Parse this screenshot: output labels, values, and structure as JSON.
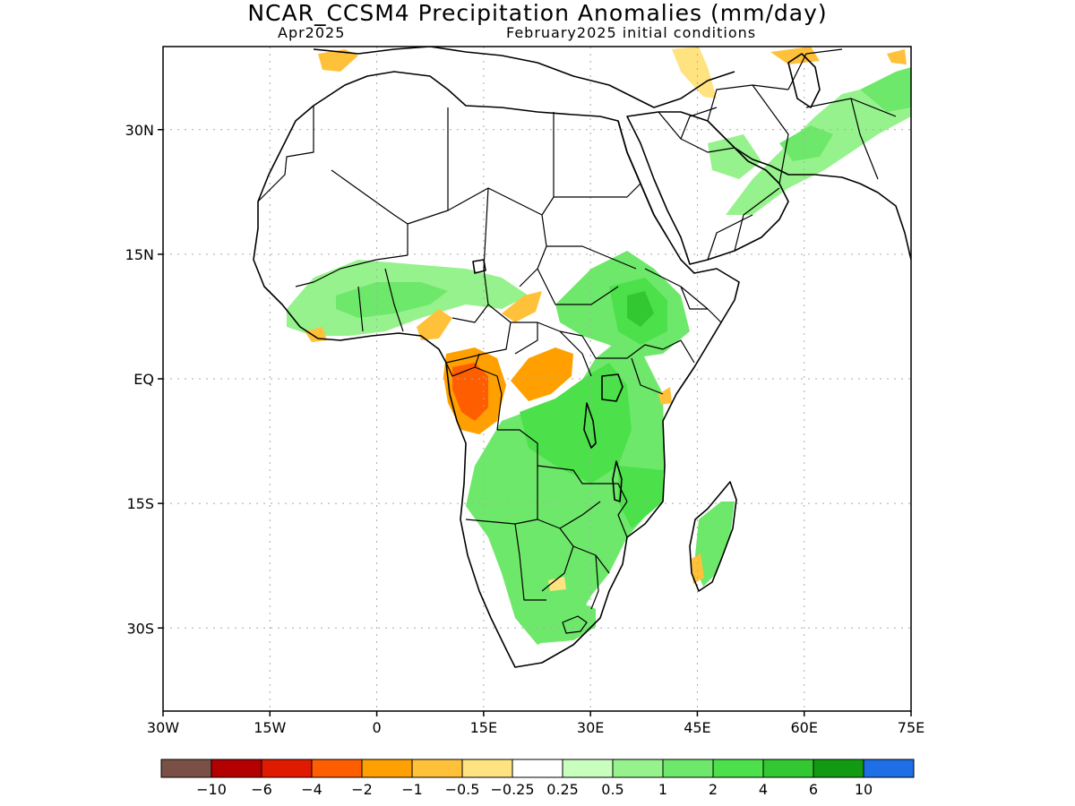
{
  "title": "NCAR_CCSM4 Precipitation Anomalies (mm/day)",
  "valid_month": "Apr2025",
  "init_conditions": "February2025 initial conditions",
  "axes": {
    "lat_ticks": [
      {
        "label": "30N",
        "lat": 30
      },
      {
        "label": "15N",
        "lat": 15
      },
      {
        "label": "EQ",
        "lat": 0
      },
      {
        "label": "15S",
        "lat": -15
      },
      {
        "label": "30S",
        "lat": -30
      }
    ],
    "lon_ticks": [
      {
        "label": "30W",
        "lon": -30
      },
      {
        "label": "15W",
        "lon": -15
      },
      {
        "label": "0",
        "lon": 0
      },
      {
        "label": "15E",
        "lon": 15
      },
      {
        "label": "30E",
        "lon": 30
      },
      {
        "label": "45E",
        "lon": 45
      },
      {
        "label": "60E",
        "lon": 60
      },
      {
        "label": "75E",
        "lon": 75
      }
    ],
    "lon_range": [
      -30,
      75
    ],
    "lat_range": [
      -40,
      40
    ],
    "grid": true
  },
  "colorbar": {
    "colors": [
      "#7a4f46",
      "#b30000",
      "#e01a00",
      "#ff5e00",
      "#ffa000",
      "#ffc13a",
      "#ffe380",
      "#ffffff",
      "#c8ffbe",
      "#96f28c",
      "#6ee86a",
      "#4ce04a",
      "#32c832",
      "#129b12",
      "#1e6ee6"
    ],
    "labels": [
      "−10",
      "−6",
      "−4",
      "−2",
      "−1",
      "−0.5",
      "−0.25",
      "0.25",
      "0.5",
      "1",
      "2",
      "4",
      "6",
      "10"
    ]
  },
  "colors": {
    "land_outline": "#000000",
    "grid": "#aaaaaa",
    "green_light": "#96f28c",
    "green_mid": "#6ee86a",
    "green_strong": "#4ce04a",
    "green_dark": "#32c832",
    "orange_light": "#ffc13a",
    "orange": "#ffa000",
    "orange_dark": "#ff5e00",
    "yellow": "#ffe380"
  }
}
